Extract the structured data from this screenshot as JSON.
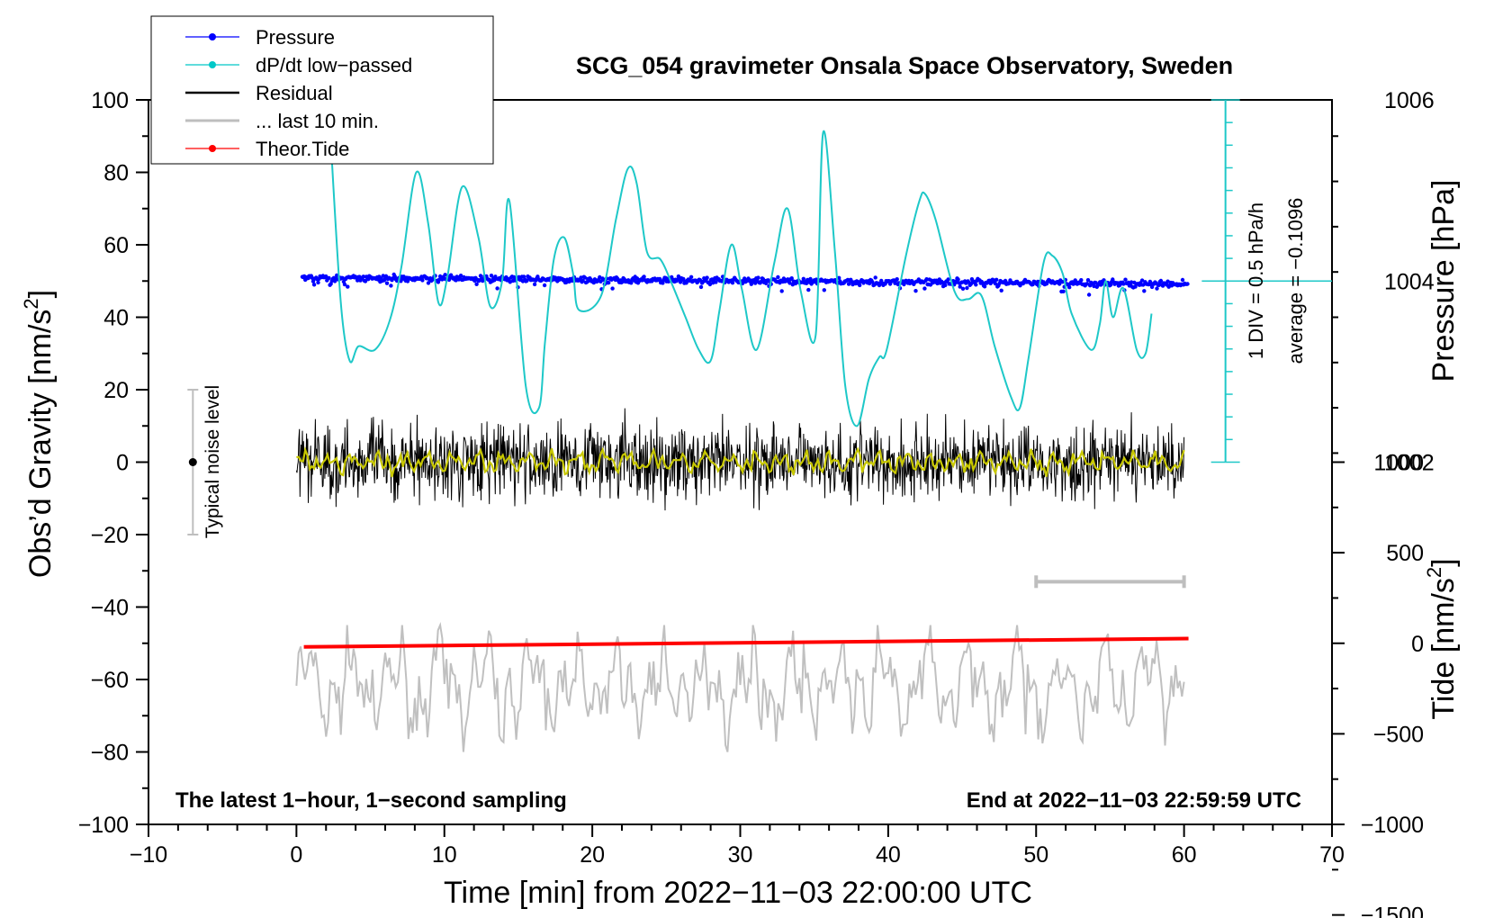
{
  "chart_data": {
    "type": "line",
    "title": "SCG_054 gravimeter Onsala Space Observatory, Sweden",
    "xlabel": "Time [min] from 2022−11−03 22:00:00 UTC",
    "ylabel_main": "Obs’d Gravity [nm/s",
    "ylabel_main_sup": "2",
    "ylabel_main_close": "]",
    "ylabel_pressure": "Pressure [hPa]",
    "ylabel_tide": "Tide [nm/s",
    "ylabel_tide_sup": "2",
    "ylabel_tide_close": "]",
    "xlim": [
      -10,
      70
    ],
    "ylim": [
      -100,
      100
    ],
    "x_ticks": [
      "−10",
      "0",
      "10",
      "20",
      "30",
      "40",
      "50",
      "60",
      "70"
    ],
    "x_tick_values": [
      -10,
      0,
      10,
      20,
      30,
      40,
      50,
      60,
      70
    ],
    "y_ticks": [
      "100",
      "80",
      "60",
      "40",
      "20",
      "0",
      "−20",
      "−40",
      "−60",
      "−80",
      "−100"
    ],
    "y_tick_values": [
      100,
      80,
      60,
      40,
      20,
      0,
      -20,
      -40,
      -60,
      -80,
      -100
    ],
    "pressure_axis": {
      "ticks": [
        "1006",
        "1004",
        "1002"
      ],
      "tick_values": [
        1006,
        1004,
        1002
      ],
      "gravity_at_1004": 50,
      "gravity_per_hpa": 25
    },
    "tide_axis": {
      "ticks": [
        "1000",
        "500",
        "0",
        "−500",
        "−1000",
        "−1500"
      ],
      "tick_values": [
        1000,
        500,
        0,
        -500,
        -1000,
        -1500
      ],
      "gravity_at_0": -50,
      "gravity_per_unit": 0.05
    },
    "dpdt_scale": {
      "label_div": "1 DIV = 0.5 hPa/h",
      "label_avg": "average = −0.1096",
      "range_gravity": [
        0,
        100
      ],
      "zero_gravity": 50
    },
    "legend": [
      {
        "label": "Pressure",
        "color": "#0000ff",
        "marker": true
      },
      {
        "label": "dP/dt low−passed",
        "color": "#00c8c8",
        "marker": true
      },
      {
        "label": "Residual",
        "color": "#000000",
        "marker": false
      },
      {
        "label": "... last 10 min.",
        "color": "#bebebe",
        "marker": false
      },
      {
        "label": "Theor.Tide",
        "color": "#ff0000",
        "marker": true
      }
    ],
    "noise_bar": {
      "label": "Typical noise level",
      "x": -7,
      "low": -20,
      "high": 20,
      "center": 0
    },
    "last10_bar": {
      "x_start": 50,
      "x_end": 60,
      "y": -33
    },
    "footer_left": "The latest 1−hour, 1−second sampling",
    "footer_right": "End at 2022−11−03 22:59:59 UTC",
    "series": [
      {
        "name": "dP/dt low-passed",
        "color": "#1ec8c8",
        "x": [
          2.3,
          3.0,
          3.6,
          4.2,
          5.3,
          6.3,
          7.1,
          8.1,
          8.9,
          9.6,
          10.2,
          11.2,
          12.3,
          13.1,
          13.9,
          14.4,
          15.5,
          16.4,
          16.8,
          17.4,
          18.1,
          18.7,
          19.1,
          20.6,
          21.6,
          22.4,
          23.0,
          23.7,
          24.6,
          25.3,
          26.3,
          27.2,
          28.0,
          28.6,
          29.4,
          30.1,
          31.1,
          32.3,
          33.2,
          34.1,
          35.1,
          35.6,
          36.4,
          37.1,
          37.9,
          38.7,
          39.4,
          39.9,
          41.2,
          42.1,
          42.5,
          43.2,
          44.5,
          45.4,
          46.3,
          47.2,
          48.3,
          48.9,
          49.5,
          50.5,
          51.1,
          51.8,
          52.4,
          53.7,
          54.3,
          54.7,
          55.2,
          55.9,
          56.8,
          57.4,
          57.8
        ],
        "y": [
          90,
          44,
          28,
          32,
          31,
          39,
          54,
          80,
          66,
          44,
          51,
          76,
          62,
          43,
          50,
          72,
          21,
          15,
          33,
          56,
          62,
          52,
          42,
          46,
          67,
          81,
          77,
          58,
          56,
          50,
          40,
          31,
          28,
          42,
          60,
          48,
          31,
          55,
          70,
          47,
          35,
          91,
          58,
          21,
          10,
          23,
          29,
          31,
          57,
          72,
          74,
          67,
          47,
          45,
          46,
          32,
          18,
          15,
          29,
          55,
          57,
          52,
          41,
          31,
          38,
          50,
          40,
          48,
          31,
          30,
          41
        ]
      },
      {
        "name": "Theor.Tide",
        "color": "#ff0000",
        "x": [
          0.5,
          60.3
        ],
        "y": [
          -51,
          -48.7
        ]
      }
    ]
  }
}
